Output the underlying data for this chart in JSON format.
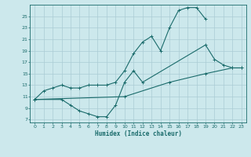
{
  "xlabel": "Humidex (Indice chaleur)",
  "bg_color": "#cce8ec",
  "grid_color": "#aaccd4",
  "line_color": "#1a6b6b",
  "xlim": [
    -0.5,
    23.5
  ],
  "ylim": [
    6.5,
    27
  ],
  "xticks": [
    0,
    1,
    2,
    3,
    4,
    5,
    6,
    7,
    8,
    9,
    10,
    11,
    12,
    13,
    14,
    15,
    16,
    17,
    18,
    19,
    20,
    21,
    22,
    23
  ],
  "yticks": [
    7,
    9,
    11,
    13,
    15,
    17,
    19,
    21,
    23,
    25
  ],
  "curve1_x": [
    0,
    1,
    2,
    3,
    4,
    5,
    6,
    7,
    8,
    9,
    10,
    11,
    12,
    13,
    14,
    15,
    16,
    17,
    18,
    19
  ],
  "curve1_y": [
    10.5,
    12.0,
    12.5,
    13.0,
    12.5,
    12.5,
    13.0,
    13.0,
    13.0,
    13.5,
    15.5,
    18.5,
    20.5,
    21.5,
    19.0,
    23.0,
    26.0,
    26.5,
    26.5,
    24.5
  ],
  "curve2_x": [
    0,
    3,
    4,
    5,
    6,
    7,
    8,
    9,
    10,
    11,
    12,
    19,
    20,
    21,
    22,
    23
  ],
  "curve2_y": [
    10.5,
    10.5,
    9.5,
    8.5,
    8.0,
    7.5,
    7.5,
    9.5,
    13.5,
    15.5,
    13.5,
    20.0,
    17.5,
    16.5,
    16.0,
    16.0
  ],
  "curve3_x": [
    0,
    10,
    15,
    19,
    22,
    23
  ],
  "curve3_y": [
    10.5,
    11.0,
    13.5,
    15.0,
    16.0,
    16.0
  ]
}
